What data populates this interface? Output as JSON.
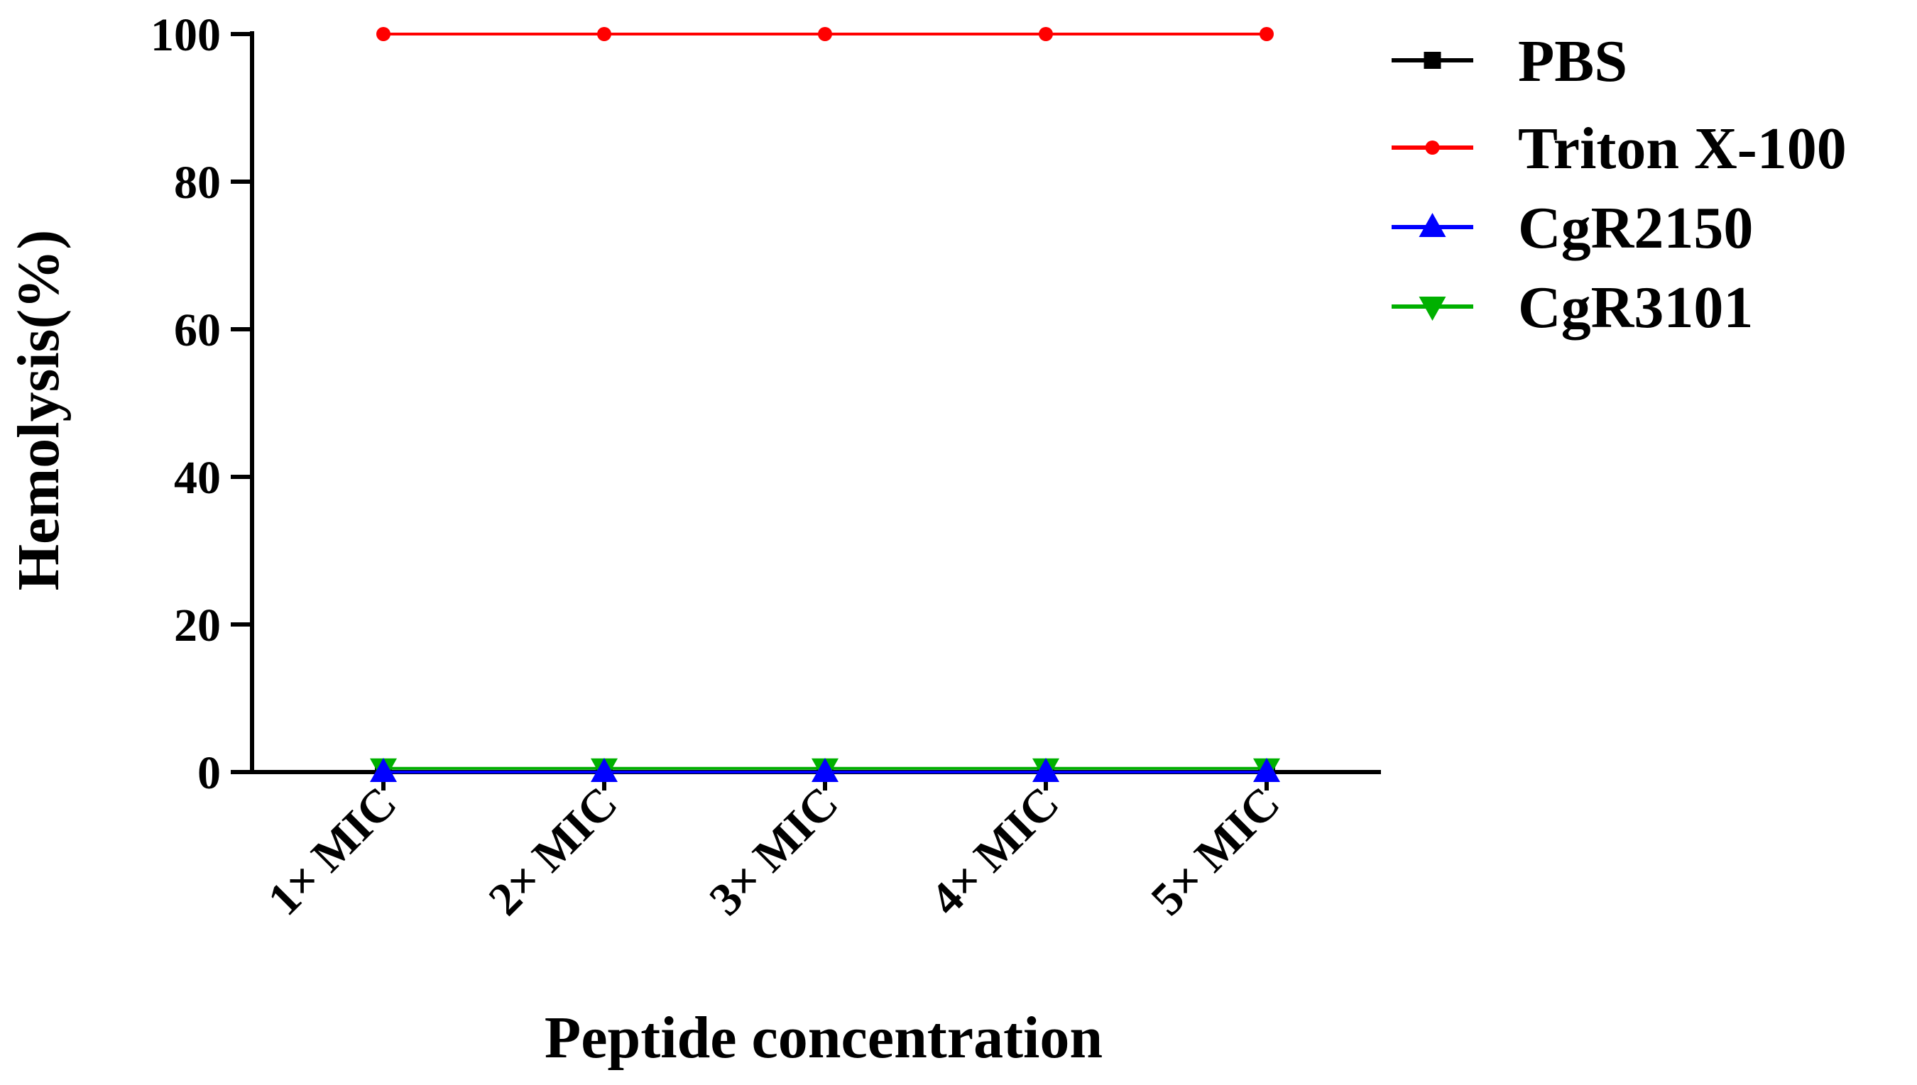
{
  "chart_data": {
    "type": "line",
    "title": "",
    "xlabel": "Peptide concentration",
    "ylabel": "Hemolysis(%)",
    "categories": [
      "1× MIC",
      "2× MIC",
      "3× MIC",
      "4× MIC",
      "5× MIC"
    ],
    "ylim": [
      0,
      100
    ],
    "yticks": [
      0,
      20,
      40,
      60,
      80,
      100
    ],
    "legend_position": "top-right, outside plot",
    "grid": false,
    "series": [
      {
        "name": "PBS",
        "values": [
          0,
          0,
          0,
          0,
          0
        ],
        "color": "#000000",
        "marker": "square"
      },
      {
        "name": "Triton X-100",
        "values": [
          100,
          100,
          100,
          100,
          100
        ],
        "color": "#ff0000",
        "marker": "circle"
      },
      {
        "name": "CgR2150",
        "values": [
          0,
          0,
          0,
          0,
          0
        ],
        "color": "#0000ff",
        "marker": "triangle-up"
      },
      {
        "name": "CgR3101",
        "values": [
          0.5,
          0.5,
          0.5,
          0.5,
          0.5
        ],
        "color": "#00b000",
        "marker": "triangle-down"
      }
    ]
  }
}
